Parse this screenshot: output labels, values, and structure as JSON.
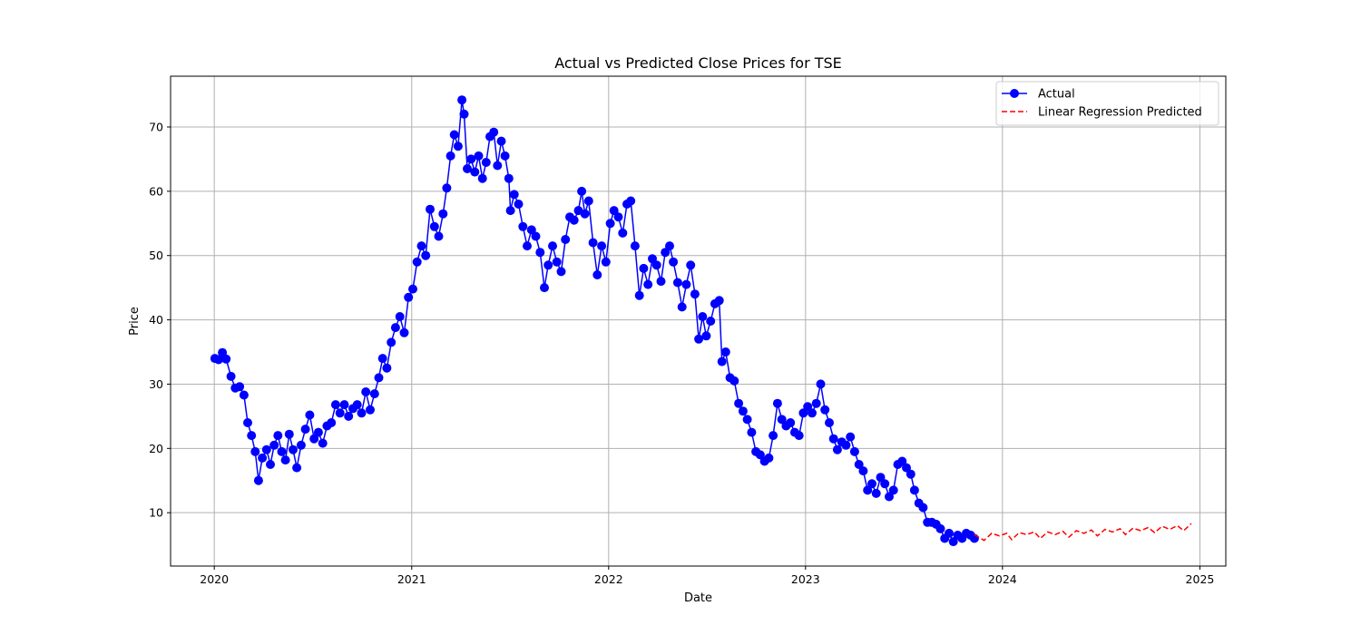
{
  "chart_data": {
    "type": "line",
    "title": "Actual vs Predicted Close Prices for TSE",
    "xlabel": "Date",
    "ylabel": "Price",
    "xlim": [
      "2019-10-12",
      "2025-02-18"
    ],
    "ylim": [
      1.7,
      77.9
    ],
    "x_ticks": [
      "2020",
      "2021",
      "2022",
      "2023",
      "2024",
      "2025"
    ],
    "y_ticks": [
      10,
      20,
      30,
      40,
      50,
      60,
      70
    ],
    "grid": true,
    "legend_position": "top-right",
    "colors": {
      "actual": "#0000ff",
      "predicted": "#ff0000",
      "grid": "#b0b0b0"
    },
    "series": [
      {
        "name": "Actual",
        "style": "solid line with circle markers",
        "points": [
          [
            "2020-01-02",
            34.0
          ],
          [
            "2020-01-09",
            33.8
          ],
          [
            "2020-01-16",
            34.9
          ],
          [
            "2020-01-23",
            33.9
          ],
          [
            "2020-02-01",
            31.2
          ],
          [
            "2020-02-09",
            29.4
          ],
          [
            "2020-02-17",
            29.6
          ],
          [
            "2020-02-25",
            28.3
          ],
          [
            "2020-03-03",
            24.0
          ],
          [
            "2020-03-10",
            22.0
          ],
          [
            "2020-03-17",
            19.5
          ],
          [
            "2020-03-23",
            15.0
          ],
          [
            "2020-03-30",
            18.5
          ],
          [
            "2020-04-07",
            19.8
          ],
          [
            "2020-04-14",
            17.5
          ],
          [
            "2020-04-21",
            20.5
          ],
          [
            "2020-04-28",
            22.0
          ],
          [
            "2020-05-05",
            19.5
          ],
          [
            "2020-05-12",
            18.2
          ],
          [
            "2020-05-19",
            22.2
          ],
          [
            "2020-05-26",
            19.8
          ],
          [
            "2020-06-02",
            17.0
          ],
          [
            "2020-06-10",
            20.5
          ],
          [
            "2020-06-18",
            23.0
          ],
          [
            "2020-06-26",
            25.2
          ],
          [
            "2020-07-04",
            21.5
          ],
          [
            "2020-07-12",
            22.5
          ],
          [
            "2020-07-20",
            20.8
          ],
          [
            "2020-07-28",
            23.5
          ],
          [
            "2020-08-05",
            24.0
          ],
          [
            "2020-08-13",
            26.8
          ],
          [
            "2020-08-21",
            25.5
          ],
          [
            "2020-08-29",
            26.8
          ],
          [
            "2020-09-06",
            25.0
          ],
          [
            "2020-09-14",
            26.2
          ],
          [
            "2020-09-22",
            26.8
          ],
          [
            "2020-09-30",
            25.5
          ],
          [
            "2020-10-08",
            28.8
          ],
          [
            "2020-10-16",
            26.0
          ],
          [
            "2020-10-24",
            28.5
          ],
          [
            "2020-11-01",
            31.0
          ],
          [
            "2020-11-08",
            34.0
          ],
          [
            "2020-11-16",
            32.5
          ],
          [
            "2020-11-24",
            36.5
          ],
          [
            "2020-12-02",
            38.8
          ],
          [
            "2020-12-10",
            40.5
          ],
          [
            "2020-12-18",
            38.0
          ],
          [
            "2020-12-26",
            43.5
          ],
          [
            "2021-01-03",
            44.8
          ],
          [
            "2021-01-11",
            49.0
          ],
          [
            "2021-01-19",
            51.5
          ],
          [
            "2021-01-27",
            50.0
          ],
          [
            "2021-02-04",
            57.2
          ],
          [
            "2021-02-12",
            54.5
          ],
          [
            "2021-02-20",
            53.0
          ],
          [
            "2021-02-28",
            56.5
          ],
          [
            "2021-03-07",
            60.5
          ],
          [
            "2021-03-14",
            65.5
          ],
          [
            "2021-03-21",
            68.8
          ],
          [
            "2021-03-28",
            67.0
          ],
          [
            "2021-04-04",
            74.2
          ],
          [
            "2021-04-08",
            72.0
          ],
          [
            "2021-04-14",
            63.5
          ],
          [
            "2021-04-21",
            65.0
          ],
          [
            "2021-04-28",
            63.0
          ],
          [
            "2021-05-05",
            65.5
          ],
          [
            "2021-05-12",
            62.0
          ],
          [
            "2021-05-19",
            64.5
          ],
          [
            "2021-05-26",
            68.5
          ],
          [
            "2021-06-02",
            69.2
          ],
          [
            "2021-06-09",
            64.0
          ],
          [
            "2021-06-16",
            67.8
          ],
          [
            "2021-06-23",
            65.5
          ],
          [
            "2021-06-30",
            62.0
          ],
          [
            "2021-07-03",
            57.0
          ],
          [
            "2021-07-10",
            59.5
          ],
          [
            "2021-07-18",
            58.0
          ],
          [
            "2021-07-26",
            54.5
          ],
          [
            "2021-08-03",
            51.5
          ],
          [
            "2021-08-11",
            54.0
          ],
          [
            "2021-08-19",
            53.0
          ],
          [
            "2021-08-27",
            50.5
          ],
          [
            "2021-09-04",
            45.0
          ],
          [
            "2021-09-11",
            48.5
          ],
          [
            "2021-09-19",
            51.5
          ],
          [
            "2021-09-27",
            49.0
          ],
          [
            "2021-10-05",
            47.5
          ],
          [
            "2021-10-13",
            52.5
          ],
          [
            "2021-10-21",
            56.0
          ],
          [
            "2021-10-29",
            55.5
          ],
          [
            "2021-11-06",
            57.0
          ],
          [
            "2021-11-12",
            60.0
          ],
          [
            "2021-11-18",
            56.5
          ],
          [
            "2021-11-25",
            58.5
          ],
          [
            "2021-12-03",
            52.0
          ],
          [
            "2021-12-11",
            47.0
          ],
          [
            "2021-12-19",
            51.5
          ],
          [
            "2021-12-27",
            49.0
          ],
          [
            "2022-01-04",
            55.0
          ],
          [
            "2022-01-11",
            57.0
          ],
          [
            "2022-01-19",
            56.0
          ],
          [
            "2022-01-27",
            53.5
          ],
          [
            "2022-02-04",
            58.0
          ],
          [
            "2022-02-11",
            58.5
          ],
          [
            "2022-02-19",
            51.5
          ],
          [
            "2022-02-27",
            43.8
          ],
          [
            "2022-03-07",
            48.0
          ],
          [
            "2022-03-15",
            45.5
          ],
          [
            "2022-03-23",
            49.5
          ],
          [
            "2022-03-31",
            48.5
          ],
          [
            "2022-04-08",
            46.0
          ],
          [
            "2022-04-16",
            50.5
          ],
          [
            "2022-04-24",
            51.5
          ],
          [
            "2022-05-01",
            49.0
          ],
          [
            "2022-05-09",
            45.8
          ],
          [
            "2022-05-17",
            42.0
          ],
          [
            "2022-05-25",
            45.5
          ],
          [
            "2022-06-02",
            48.5
          ],
          [
            "2022-06-10",
            44.0
          ],
          [
            "2022-06-17",
            37.0
          ],
          [
            "2022-06-24",
            40.5
          ],
          [
            "2022-07-01",
            37.5
          ],
          [
            "2022-07-09",
            39.8
          ],
          [
            "2022-07-17",
            42.5
          ],
          [
            "2022-07-25",
            43.0
          ],
          [
            "2022-07-30",
            33.5
          ],
          [
            "2022-08-06",
            35.0
          ],
          [
            "2022-08-14",
            31.0
          ],
          [
            "2022-08-22",
            30.5
          ],
          [
            "2022-08-30",
            27.0
          ],
          [
            "2022-09-07",
            25.8
          ],
          [
            "2022-09-15",
            24.5
          ],
          [
            "2022-09-23",
            22.5
          ],
          [
            "2022-10-01",
            19.5
          ],
          [
            "2022-10-09",
            19.0
          ],
          [
            "2022-10-17",
            18.0
          ],
          [
            "2022-10-25",
            18.5
          ],
          [
            "2022-11-02",
            22.0
          ],
          [
            "2022-11-10",
            27.0
          ],
          [
            "2022-11-18",
            24.5
          ],
          [
            "2022-11-26",
            23.5
          ],
          [
            "2022-12-04",
            24.0
          ],
          [
            "2022-12-12",
            22.5
          ],
          [
            "2022-12-20",
            22.0
          ],
          [
            "2022-12-28",
            25.5
          ],
          [
            "2023-01-05",
            26.5
          ],
          [
            "2023-01-13",
            25.5
          ],
          [
            "2023-01-21",
            27.0
          ],
          [
            "2023-01-29",
            30.0
          ],
          [
            "2023-02-06",
            26.0
          ],
          [
            "2023-02-14",
            24.0
          ],
          [
            "2023-02-22",
            21.5
          ],
          [
            "2023-03-01",
            19.8
          ],
          [
            "2023-03-09",
            21.0
          ],
          [
            "2023-03-17",
            20.5
          ],
          [
            "2023-03-25",
            21.8
          ],
          [
            "2023-04-02",
            19.5
          ],
          [
            "2023-04-10",
            17.5
          ],
          [
            "2023-04-18",
            16.5
          ],
          [
            "2023-04-26",
            13.5
          ],
          [
            "2023-05-04",
            14.5
          ],
          [
            "2023-05-12",
            13.0
          ],
          [
            "2023-05-20",
            15.5
          ],
          [
            "2023-05-28",
            14.5
          ],
          [
            "2023-06-05",
            12.5
          ],
          [
            "2023-06-13",
            13.5
          ],
          [
            "2023-06-21",
            17.5
          ],
          [
            "2023-06-29",
            18.0
          ],
          [
            "2023-07-07",
            17.0
          ],
          [
            "2023-07-15",
            16.0
          ],
          [
            "2023-07-22",
            13.5
          ],
          [
            "2023-07-30",
            11.5
          ],
          [
            "2023-08-07",
            10.8
          ],
          [
            "2023-08-15",
            8.5
          ],
          [
            "2023-08-23",
            8.5
          ],
          [
            "2023-08-31",
            8.2
          ],
          [
            "2023-09-08",
            7.5
          ],
          [
            "2023-09-16",
            6.0
          ],
          [
            "2023-09-24",
            6.8
          ],
          [
            "2023-10-02",
            5.5
          ],
          [
            "2023-10-10",
            6.5
          ],
          [
            "2023-10-18",
            6.0
          ],
          [
            "2023-10-26",
            6.8
          ],
          [
            "2023-11-03",
            6.5
          ],
          [
            "2023-11-10",
            6.0
          ]
        ]
      },
      {
        "name": "Linear Regression Predicted",
        "style": "dashed line",
        "points": [
          [
            "2023-11-10",
            6.6
          ],
          [
            "2023-11-28",
            5.7
          ],
          [
            "2023-12-12",
            6.8
          ],
          [
            "2023-12-26",
            6.4
          ],
          [
            "2024-01-09",
            6.8
          ],
          [
            "2024-01-18",
            5.8
          ],
          [
            "2024-02-01",
            6.9
          ],
          [
            "2024-02-15",
            6.6
          ],
          [
            "2024-02-29",
            7.0
          ],
          [
            "2024-03-11",
            6.0
          ],
          [
            "2024-03-25",
            7.0
          ],
          [
            "2024-04-08",
            6.6
          ],
          [
            "2024-04-22",
            7.1
          ],
          [
            "2024-05-03",
            6.2
          ],
          [
            "2024-05-17",
            7.2
          ],
          [
            "2024-05-31",
            6.8
          ],
          [
            "2024-06-14",
            7.3
          ],
          [
            "2024-06-25",
            6.4
          ],
          [
            "2024-07-09",
            7.4
          ],
          [
            "2024-07-23",
            7.0
          ],
          [
            "2024-08-06",
            7.5
          ],
          [
            "2024-08-16",
            6.6
          ],
          [
            "2024-08-30",
            7.6
          ],
          [
            "2024-09-13",
            7.2
          ],
          [
            "2024-09-27",
            7.7
          ],
          [
            "2024-10-09",
            6.9
          ],
          [
            "2024-10-23",
            7.9
          ],
          [
            "2024-11-06",
            7.4
          ],
          [
            "2024-11-20",
            8.0
          ],
          [
            "2024-12-02",
            7.2
          ],
          [
            "2024-12-16",
            8.3
          ]
        ]
      }
    ]
  }
}
